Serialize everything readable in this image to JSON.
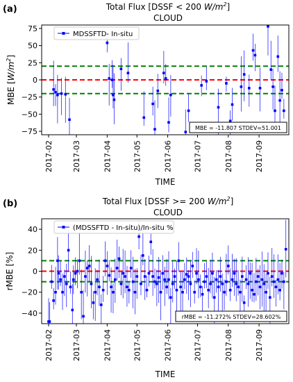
{
  "chart_data": [
    {
      "type": "scatter",
      "panel_label": "(a)",
      "title_line1": "Total Flux  [DSSF < 200 W/m²]",
      "title_main": "Total Flux  [DSSF < 200 ",
      "title_unit_base": "W/m",
      "title_unit_exp": "2",
      "title_close": "]",
      "title_line2": "CLOUD",
      "ylabel_text": "MBE [",
      "ylabel_unit_base": "W/m",
      "ylabel_unit_exp": "2",
      "ylabel_close": "]",
      "xlabel": "TIME",
      "ylim": [
        -80,
        80
      ],
      "yticks": [
        -75,
        -50,
        -25,
        0,
        25,
        50,
        75
      ],
      "xlim": [
        "2017-01-25",
        "2017-10-01"
      ],
      "xticks": [
        "2017-02",
        "2017-03",
        "2017-04",
        "2017-05",
        "2017-06",
        "2017-07",
        "2017-08",
        "2017-09"
      ],
      "reference_lines": [
        {
          "value": 20,
          "color": "#008000",
          "style": "dashed"
        },
        {
          "value": 0,
          "color": "#ff0000",
          "style": "dashed"
        },
        {
          "value": -20,
          "color": "#008000",
          "style": "dashed"
        }
      ],
      "legend": {
        "label": "MDSSFTD- In-situ",
        "placement": "upper-left"
      },
      "stats_box": "MBE = -11.807   STDEV=51.001",
      "point_color": "#0000ff",
      "series": [
        {
          "name": "MDSSFTD- In-situ",
          "x": [
            "2017-02-06",
            "2017-02-08",
            "2017-02-10",
            "2017-02-14",
            "2017-02-18",
            "2017-02-22",
            "2017-04-01",
            "2017-04-03",
            "2017-04-06",
            "2017-04-07",
            "2017-04-08",
            "2017-04-15",
            "2017-04-22",
            "2017-05-08",
            "2017-05-17",
            "2017-05-19",
            "2017-05-22",
            "2017-05-28",
            "2017-05-30",
            "2017-06-02",
            "2017-06-04",
            "2017-06-19",
            "2017-06-22",
            "2017-07-05",
            "2017-07-10",
            "2017-07-22",
            "2017-07-30",
            "2017-08-03",
            "2017-08-05",
            "2017-08-14",
            "2017-08-17",
            "2017-08-22",
            "2017-08-26",
            "2017-08-28",
            "2017-09-02",
            "2017-09-10",
            "2017-09-13",
            "2017-09-15",
            "2017-09-17",
            "2017-09-20",
            "2017-09-22",
            "2017-09-24",
            "2017-09-26"
          ],
          "y": [
            -14,
            -18,
            -22,
            -20,
            -21,
            -58,
            54,
            2,
            0,
            -22,
            -29,
            16,
            10,
            -55,
            -35,
            -72,
            -16,
            10,
            2,
            -62,
            -22,
            -76,
            -45,
            -8,
            -2,
            -40,
            -5,
            -60,
            -36,
            -10,
            8,
            -12,
            43,
            36,
            -12,
            78,
            15,
            -10,
            -45,
            34,
            -30,
            -15,
            -45
          ]
        }
      ]
    },
    {
      "type": "scatter",
      "panel_label": "(b)",
      "title_line1": "Total Flux  [DSSF >= 200 W/m²]",
      "title_main": "Total Flux  [DSSF >= 200 ",
      "title_unit_base": "W/m",
      "title_unit_exp": "2",
      "title_close": "]",
      "title_line2": "CLOUD",
      "ylabel": "rMBE [%]",
      "xlabel": "TIME",
      "ylim": [
        -50,
        50
      ],
      "yticks": [
        -40,
        -20,
        0,
        20,
        40
      ],
      "xlim": [
        "2017-01-25",
        "2017-10-01"
      ],
      "xticks": [
        "2017-02",
        "2017-03",
        "2017-04",
        "2017-05",
        "2017-06",
        "2017-07",
        "2017-08",
        "2017-09"
      ],
      "reference_lines": [
        {
          "value": 10,
          "color": "#008000",
          "style": "dashed"
        },
        {
          "value": 0,
          "color": "#ff0000",
          "style": "dashed"
        },
        {
          "value": -10,
          "color": "#008000",
          "style": "dashed"
        }
      ],
      "legend": {
        "label": "(MDSSFTD - In-situ)/In-situ %",
        "placement": "upper-left"
      },
      "stats_box": "rMBE = -11.272%   STDEV=28.602%",
      "point_color": "#0000ff",
      "series": [
        {
          "name": "(MDSSFTD - In-situ)/In-situ %",
          "x": [
            "2017-02-01",
            "2017-02-02",
            "2017-02-04",
            "2017-02-06",
            "2017-02-08",
            "2017-02-10",
            "2017-02-11",
            "2017-02-13",
            "2017-02-15",
            "2017-02-17",
            "2017-02-19",
            "2017-02-21",
            "2017-02-23",
            "2017-02-25",
            "2017-02-26",
            "2017-02-28",
            "2017-03-02",
            "2017-03-04",
            "2017-03-06",
            "2017-03-08",
            "2017-03-10",
            "2017-03-12",
            "2017-03-14",
            "2017-03-16",
            "2017-03-18",
            "2017-03-20",
            "2017-03-22",
            "2017-03-24",
            "2017-03-26",
            "2017-03-28",
            "2017-03-30",
            "2017-04-01",
            "2017-04-03",
            "2017-04-05",
            "2017-04-07",
            "2017-04-09",
            "2017-04-11",
            "2017-04-13",
            "2017-04-15",
            "2017-04-17",
            "2017-04-19",
            "2017-04-21",
            "2017-04-23",
            "2017-04-25",
            "2017-04-27",
            "2017-04-29",
            "2017-05-01",
            "2017-05-03",
            "2017-05-05",
            "2017-05-07",
            "2017-05-09",
            "2017-05-11",
            "2017-05-13",
            "2017-05-15",
            "2017-05-17",
            "2017-05-19",
            "2017-05-21",
            "2017-05-23",
            "2017-05-25",
            "2017-05-27",
            "2017-05-29",
            "2017-05-31",
            "2017-06-02",
            "2017-06-04",
            "2017-06-06",
            "2017-06-08",
            "2017-06-10",
            "2017-06-12",
            "2017-06-14",
            "2017-06-16",
            "2017-06-18",
            "2017-06-20",
            "2017-06-22",
            "2017-06-24",
            "2017-06-26",
            "2017-06-28",
            "2017-06-30",
            "2017-07-02",
            "2017-07-04",
            "2017-07-06",
            "2017-07-08",
            "2017-07-10",
            "2017-07-12",
            "2017-07-14",
            "2017-07-16",
            "2017-07-18",
            "2017-07-20",
            "2017-07-22",
            "2017-07-24",
            "2017-07-26",
            "2017-07-28",
            "2017-07-30",
            "2017-08-01",
            "2017-08-03",
            "2017-08-05",
            "2017-08-07",
            "2017-08-09",
            "2017-08-11",
            "2017-08-13",
            "2017-08-15",
            "2017-08-17",
            "2017-08-19",
            "2017-08-21",
            "2017-08-23",
            "2017-08-25",
            "2017-08-27",
            "2017-08-29",
            "2017-08-31",
            "2017-09-02",
            "2017-09-04",
            "2017-09-06",
            "2017-09-08",
            "2017-09-10",
            "2017-09-12",
            "2017-09-14",
            "2017-09-16",
            "2017-09-18",
            "2017-09-20",
            "2017-09-22",
            "2017-09-24",
            "2017-09-26",
            "2017-09-28"
          ],
          "y": [
            -48,
            -48,
            -10,
            -28,
            -20,
            10,
            -2,
            -8,
            -20,
            -5,
            -12,
            20,
            -15,
            -37,
            -8,
            -2,
            0,
            10,
            -20,
            -43,
            -5,
            3,
            5,
            -12,
            -30,
            -20,
            -8,
            -15,
            -32,
            -18,
            10,
            5,
            -4,
            -15,
            -20,
            -8,
            3,
            12,
            -12,
            -2,
            -5,
            -15,
            -18,
            3,
            -10,
            -20,
            -5,
            33,
            -12,
            15,
            -5,
            -18,
            -2,
            28,
            -5,
            -10,
            -12,
            -6,
            -20,
            -2,
            -8,
            -15,
            -8,
            -25,
            -12,
            -5,
            -18,
            10,
            -15,
            -20,
            -8,
            -3,
            -5,
            -12,
            5,
            -20,
            -2,
            -8,
            -15,
            -22,
            -10,
            -5,
            -18,
            -12,
            -2,
            -25,
            -8,
            -15,
            -5,
            -12,
            -20,
            -10,
            5,
            -18,
            -8,
            -2,
            -12,
            -15,
            -20,
            -5,
            -30,
            -8,
            -12,
            -2,
            -18,
            -22,
            -10,
            -5,
            -15,
            -8,
            -12,
            -20,
            -2,
            -25,
            -5,
            -10,
            -15,
            -8,
            -18,
            -2,
            -10,
            21
          ]
        }
      ]
    }
  ]
}
